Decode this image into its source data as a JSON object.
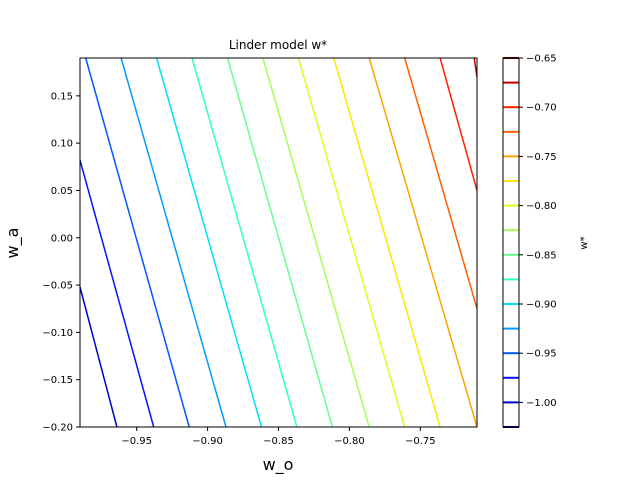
{
  "chart_data": {
    "type": "contour",
    "title": "Linder model w*",
    "xlabel": "w_o",
    "ylabel": "w_a",
    "colorbar_label": "w*",
    "xlim": [
      -0.99,
      -0.71
    ],
    "ylim": [
      -0.2,
      0.19
    ],
    "xticks": [
      -0.95,
      -0.9,
      -0.85,
      -0.8,
      -0.75
    ],
    "xtick_labels": [
      "−0.95",
      "−0.90",
      "−0.85",
      "−0.80",
      "−0.75"
    ],
    "yticks": [
      0.15,
      0.1,
      0.05,
      0.0,
      -0.05,
      -0.1,
      -0.15,
      -0.2
    ],
    "ytick_labels": [
      "0.15",
      "0.10",
      "0.05",
      "0.00",
      "−0.05",
      "−0.10",
      "−0.15",
      "−0.20"
    ],
    "colorbar_range": [
      -1.025,
      -0.65
    ],
    "colorbar_ticks": [
      -0.65,
      -0.7,
      -0.75,
      -0.8,
      -0.85,
      -0.9,
      -0.95,
      -1.0
    ],
    "colorbar_tick_labels": [
      "−0.65",
      "−0.70",
      "−0.75",
      "−0.80",
      "−0.85",
      "−0.90",
      "−0.95",
      "−1.00"
    ],
    "levels": [
      -1.025,
      -1.0,
      -0.975,
      -0.95,
      -0.925,
      -0.9,
      -0.875,
      -0.85,
      -0.825,
      -0.8,
      -0.775,
      -0.75,
      -0.725,
      -0.7,
      -0.675,
      -0.65
    ],
    "level_colors": [
      "#00007f",
      "#0000d0",
      "#0014ff",
      "#0058ff",
      "#009cff",
      "#00e0fb",
      "#35ffc1",
      "#67ff8f",
      "#a0ff56",
      "#d8ff1f",
      "#ffe600",
      "#ffa300",
      "#ff6000",
      "#ff2100",
      "#c30000",
      "#7f0000"
    ],
    "contour_lines": [
      {
        "level": -1.0,
        "color": "#0000d0",
        "points": [
          [
            -0.99,
            -0.052
          ],
          [
            -0.964,
            -0.2
          ]
        ]
      },
      {
        "level": -0.975,
        "color": "#0014ff",
        "points": [
          [
            -0.99,
            0.082
          ],
          [
            -0.938,
            -0.2
          ]
        ]
      },
      {
        "level": -0.95,
        "color": "#0058ff",
        "points": [
          [
            -0.986,
            0.19
          ],
          [
            -0.913,
            -0.2
          ]
        ]
      },
      {
        "level": -0.925,
        "color": "#009cff",
        "points": [
          [
            -0.961,
            0.19
          ],
          [
            -0.887,
            -0.2
          ]
        ]
      },
      {
        "level": -0.9,
        "color": "#00e0fb",
        "points": [
          [
            -0.936,
            0.19
          ],
          [
            -0.862,
            -0.2
          ]
        ]
      },
      {
        "level": -0.875,
        "color": "#35ffc1",
        "points": [
          [
            -0.911,
            0.19
          ],
          [
            -0.837,
            -0.2
          ]
        ]
      },
      {
        "level": -0.85,
        "color": "#67ff8f",
        "points": [
          [
            -0.886,
            0.19
          ],
          [
            -0.812,
            -0.2
          ]
        ]
      },
      {
        "level": -0.825,
        "color": "#a0ff56",
        "points": [
          [
            -0.861,
            0.19
          ],
          [
            -0.786,
            -0.2
          ]
        ]
      },
      {
        "level": -0.8,
        "color": "#d8ff1f",
        "points": [
          [
            -0.836,
            0.19
          ],
          [
            -0.761,
            -0.2
          ]
        ]
      },
      {
        "level": -0.775,
        "color": "#ffe600",
        "points": [
          [
            -0.811,
            0.19
          ],
          [
            -0.736,
            -0.2
          ]
        ]
      },
      {
        "level": -0.75,
        "color": "#ffa300",
        "points": [
          [
            -0.786,
            0.19
          ],
          [
            -0.71,
            -0.2
          ]
        ]
      },
      {
        "level": -0.725,
        "color": "#ff6000",
        "points": [
          [
            -0.761,
            0.19
          ],
          [
            -0.71,
            -0.075
          ]
        ]
      },
      {
        "level": -0.7,
        "color": "#ff2100",
        "points": [
          [
            -0.736,
            0.19
          ],
          [
            -0.71,
            0.05
          ]
        ]
      },
      {
        "level": -0.675,
        "color": "#c30000",
        "points": [
          [
            -0.712,
            0.19
          ],
          [
            -0.71,
            0.17
          ]
        ]
      }
    ]
  }
}
